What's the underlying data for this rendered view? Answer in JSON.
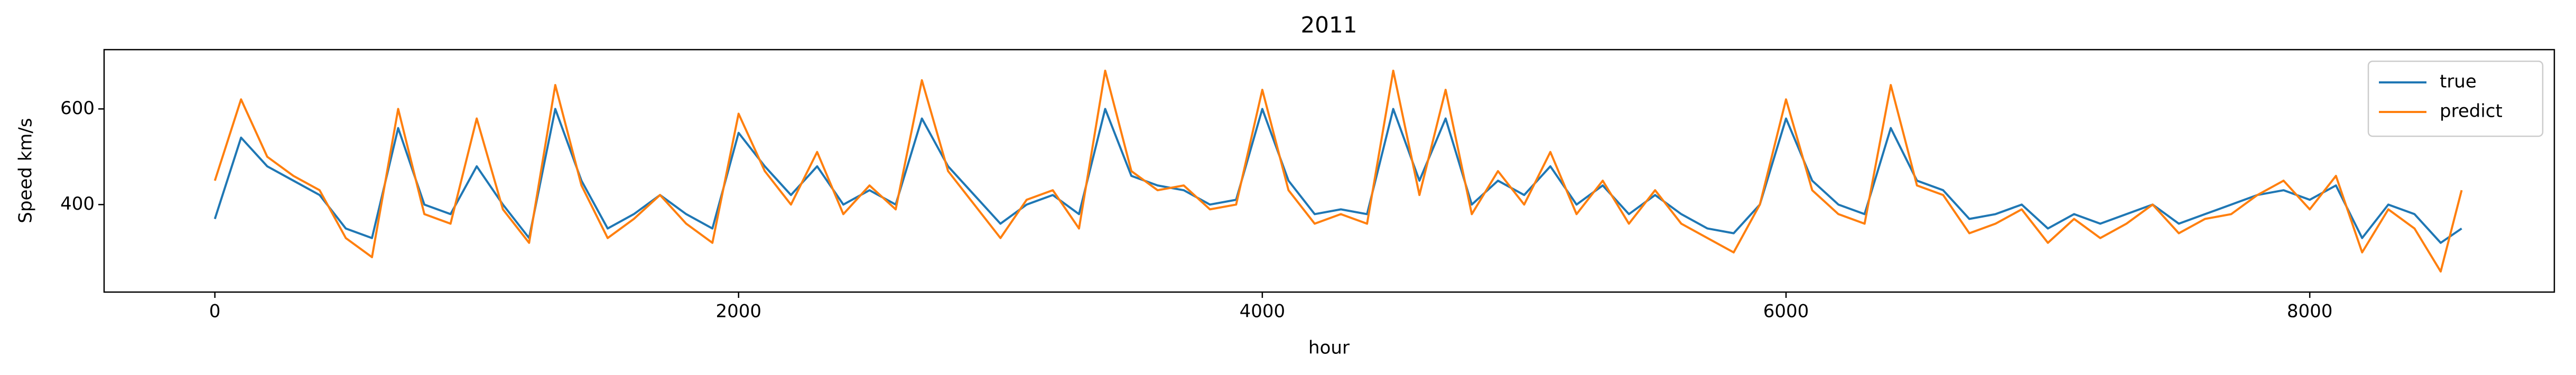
{
  "chart_data": {
    "type": "line",
    "title": "2011",
    "xlabel": "hour",
    "ylabel": "Speed km/s",
    "x": [
      0,
      100,
      200,
      300,
      400,
      500,
      600,
      700,
      800,
      900,
      1000,
      1100,
      1200,
      1300,
      1400,
      1500,
      1600,
      1700,
      1800,
      1900,
      2000,
      2100,
      2200,
      2300,
      2400,
      2500,
      2600,
      2700,
      2800,
      2900,
      3000,
      3100,
      3200,
      3300,
      3400,
      3500,
      3600,
      3700,
      3800,
      3900,
      4000,
      4100,
      4200,
      4300,
      4400,
      4500,
      4600,
      4700,
      4800,
      4900,
      5000,
      5100,
      5200,
      5300,
      5400,
      5500,
      5600,
      5700,
      5800,
      5900,
      6000,
      6100,
      6200,
      6300,
      6400,
      6500,
      6600,
      6700,
      6800,
      6900,
      7000,
      7100,
      7200,
      7300,
      7400,
      7500,
      7600,
      7700,
      7800,
      7900,
      8000,
      8100,
      8200,
      8300,
      8400,
      8500,
      8580
    ],
    "series": [
      {
        "name": "true",
        "color": "#1f77b4",
        "values": [
          370,
          540,
          480,
          450,
          420,
          350,
          330,
          560,
          400,
          380,
          480,
          400,
          330,
          600,
          450,
          350,
          380,
          420,
          380,
          350,
          550,
          480,
          420,
          480,
          400,
          430,
          400,
          580,
          480,
          420,
          360,
          400,
          420,
          380,
          600,
          460,
          440,
          430,
          400,
          410,
          600,
          450,
          380,
          390,
          380,
          600,
          450,
          580,
          400,
          450,
          420,
          480,
          400,
          440,
          380,
          420,
          380,
          350,
          340,
          400,
          580,
          450,
          400,
          380,
          560,
          450,
          430,
          370,
          380,
          400,
          350,
          380,
          360,
          380,
          400,
          360,
          380,
          400,
          420,
          430,
          410,
          440,
          330,
          400,
          380,
          320,
          350
        ]
      },
      {
        "name": "predict",
        "color": "#ff7f0e",
        "values": [
          450,
          620,
          500,
          460,
          430,
          330,
          290,
          600,
          380,
          360,
          580,
          390,
          320,
          650,
          440,
          330,
          370,
          420,
          360,
          320,
          590,
          470,
          400,
          510,
          380,
          440,
          390,
          660,
          470,
          400,
          330,
          410,
          430,
          350,
          680,
          470,
          430,
          440,
          390,
          400,
          640,
          430,
          360,
          380,
          360,
          680,
          420,
          640,
          380,
          470,
          400,
          510,
          380,
          450,
          360,
          430,
          360,
          330,
          300,
          400,
          620,
          430,
          380,
          360,
          650,
          440,
          420,
          340,
          360,
          390,
          320,
          370,
          330,
          360,
          400,
          340,
          370,
          380,
          420,
          450,
          390,
          460,
          300,
          390,
          350,
          260,
          430
        ]
      }
    ],
    "xlim": [
      -423,
      8934
    ],
    "ylim": [
      217,
      724
    ],
    "xticks": [
      0,
      2000,
      4000,
      6000,
      8000
    ],
    "yticks": [
      400,
      600
    ],
    "legend": "upper right"
  }
}
